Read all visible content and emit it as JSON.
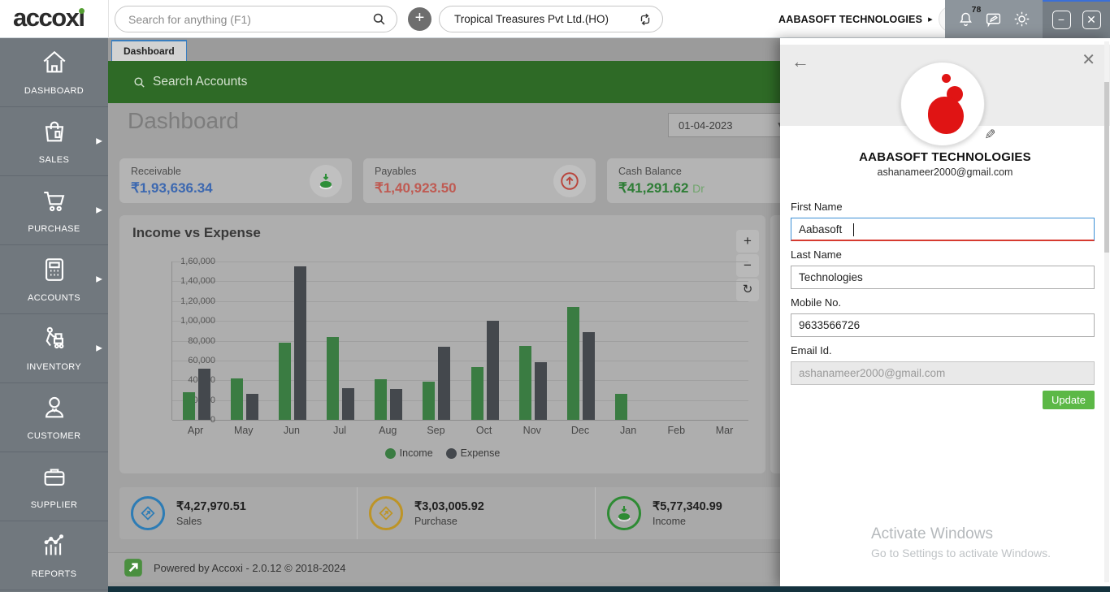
{
  "app": {
    "logo_text": "accoxi",
    "footer_text": "Powered by Accoxi - 2.0.12 © 2018-2024"
  },
  "topbar": {
    "search_placeholder": "Search for anything (F1)",
    "plus_label": "+",
    "company_selector": "Tropical Treasures Pvt Ltd.(HO)",
    "account_name": "AABASOFT TECHNOLOGIES",
    "account_caret": "▸",
    "notification_count": "78",
    "minimize_label": "−",
    "close_label": "✕"
  },
  "sidebar": {
    "items": [
      {
        "label": "DASHBOARD",
        "icon": "home-icon",
        "has_submenu": false
      },
      {
        "label": "SALES",
        "icon": "shopping-bag-icon",
        "has_submenu": true
      },
      {
        "label": "PURCHASE",
        "icon": "cart-icon",
        "has_submenu": true
      },
      {
        "label": "ACCOUNTS",
        "icon": "calculator-icon",
        "has_submenu": true
      },
      {
        "label": "INVENTORY",
        "icon": "trolley-icon",
        "has_submenu": true
      },
      {
        "label": "CUSTOMER",
        "icon": "person-icon",
        "has_submenu": false
      },
      {
        "label": "SUPPLIER",
        "icon": "briefcase-icon",
        "has_submenu": false
      },
      {
        "label": "REPORTS",
        "icon": "report-chart-icon",
        "has_submenu": false
      }
    ]
  },
  "main": {
    "tab_label": "Dashboard",
    "accounts_search_label": "Search Accounts",
    "page_title": "Dashboard",
    "date_value": "01-04-2023",
    "stat_cards": [
      {
        "label": "Receivable",
        "value": "₹1,93,636.34",
        "suffix": "",
        "value_color": "#3c68b0",
        "icon": "coin-down-icon"
      },
      {
        "label": "Payables",
        "value": "₹1,40,923.50",
        "suffix": "",
        "value_color": "#bf5a52",
        "icon": "arrow-up-circle-icon"
      },
      {
        "label": "Cash Balance",
        "value": "₹41,291.62",
        "suffix": "Dr",
        "value_color": "#2e7d36",
        "suffix_color": "#6fa56b",
        "icon": ""
      }
    ],
    "chart_controls": {
      "zoom_in": "+",
      "zoom_out": "−",
      "refresh": "↻"
    },
    "summary_items": [
      {
        "value": "₹4,27,970.51",
        "label": "Sales",
        "icon": "diamond-arrow-icon",
        "ring_color": "#2d7cb5"
      },
      {
        "value": "₹3,03,005.92",
        "label": "Purchase",
        "icon": "diamond-arrow-icon",
        "ring_color": "#bd9427"
      },
      {
        "value": "₹5,77,340.99",
        "label": "Income",
        "icon": "coin-down-icon",
        "ring_color": "#2e8b34"
      }
    ]
  },
  "chart_data": {
    "type": "bar",
    "title": "Income vs Expense",
    "categories": [
      "Apr",
      "May",
      "Jun",
      "Jul",
      "Aug",
      "Sep",
      "Oct",
      "Nov",
      "Dec",
      "Jan",
      "Feb",
      "Mar"
    ],
    "series": [
      {
        "name": "Income",
        "color": "#3a7c42",
        "values": [
          28000,
          42000,
          78000,
          84000,
          41000,
          38500,
          53000,
          75000,
          114000,
          26500,
          0,
          0
        ]
      },
      {
        "name": "Expense",
        "color": "#44484d",
        "values": [
          52000,
          26000,
          155000,
          32000,
          31000,
          74000,
          100000,
          58000,
          89000,
          0,
          0,
          0
        ]
      }
    ],
    "ylim": [
      0,
      160000
    ],
    "ytick_step": 20000,
    "ytick_labels": [
      "0",
      "20,000",
      "40,000",
      "60,000",
      "80,000",
      "1,00,000",
      "1,20,000",
      "1,40,000",
      "1,60,000"
    ],
    "grid": true,
    "legend_position": "bottom"
  },
  "profile_panel": {
    "back_label": "←",
    "close_label": "✕",
    "edit_icon": "✎",
    "name": "AABASOFT TECHNOLOGIES",
    "email": "ashanameer2000@gmail.com",
    "fields": [
      {
        "label": "First Name",
        "value": "Aabasoft",
        "state": "focused"
      },
      {
        "label": "Last Name",
        "value": "Technologies",
        "state": "normal"
      },
      {
        "label": "Mobile No.",
        "value": "9633566726",
        "state": "normal"
      },
      {
        "label": "Email Id.",
        "value": "ashanameer2000@gmail.com",
        "state": "disabled"
      }
    ],
    "update_label": "Update"
  },
  "watermark": {
    "line1": "Activate Windows",
    "line2": "Go to Settings to activate Windows."
  },
  "colors": {
    "sidebar_bg": "#71787e",
    "green_bar": "#2e6a26",
    "update_green": "#5cb846",
    "income_green": "#3a7c42",
    "expense_dark": "#44484d",
    "accent_blue": "#3a7ebf",
    "brand_red": "#e01414",
    "bottom_strip": "#14323e"
  }
}
